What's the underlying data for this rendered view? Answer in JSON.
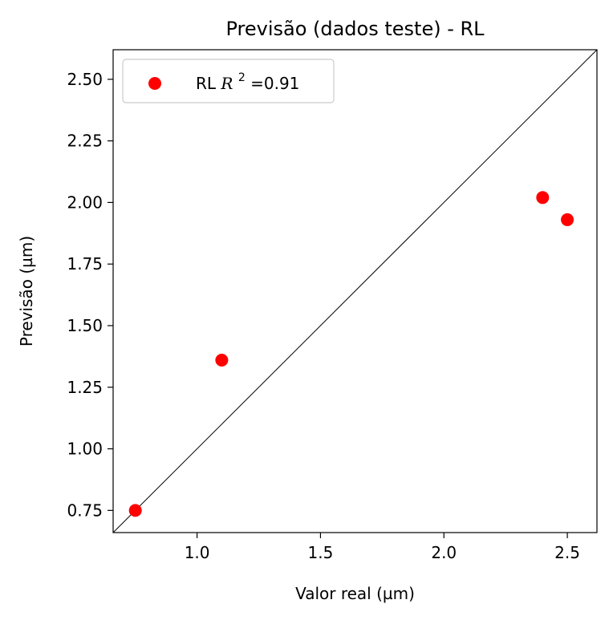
{
  "chart_data": {
    "type": "scatter",
    "title": "Previsão (dados teste) - RL",
    "xlabel": "Valor real (µm)",
    "ylabel": "Previsão (µm)",
    "xlim": [
      0.66,
      2.62
    ],
    "ylim": [
      0.66,
      2.62
    ],
    "x_ticks": [
      "1.0",
      "1.5",
      "2.0",
      "2.5"
    ],
    "y_ticks": [
      "0.75",
      "1.00",
      "1.25",
      "1.50",
      "1.75",
      "2.00",
      "2.25",
      "2.50"
    ],
    "grid": false,
    "legend_position": "top-left",
    "legend": {
      "prefix": "RL ",
      "symbol": "R",
      "exponent": "2",
      "suffix": "=0.91"
    },
    "reference_line": "y = x",
    "series": [
      {
        "color": "#ff0000",
        "points": [
          {
            "x": 0.75,
            "y": 0.75
          },
          {
            "x": 1.1,
            "y": 1.36
          },
          {
            "x": 2.4,
            "y": 2.02
          },
          {
            "x": 2.5,
            "y": 1.93
          }
        ]
      }
    ],
    "colors": {
      "marker": "#ff0000",
      "line": "#000000",
      "axes": "#000000",
      "background": "#ffffff"
    }
  }
}
